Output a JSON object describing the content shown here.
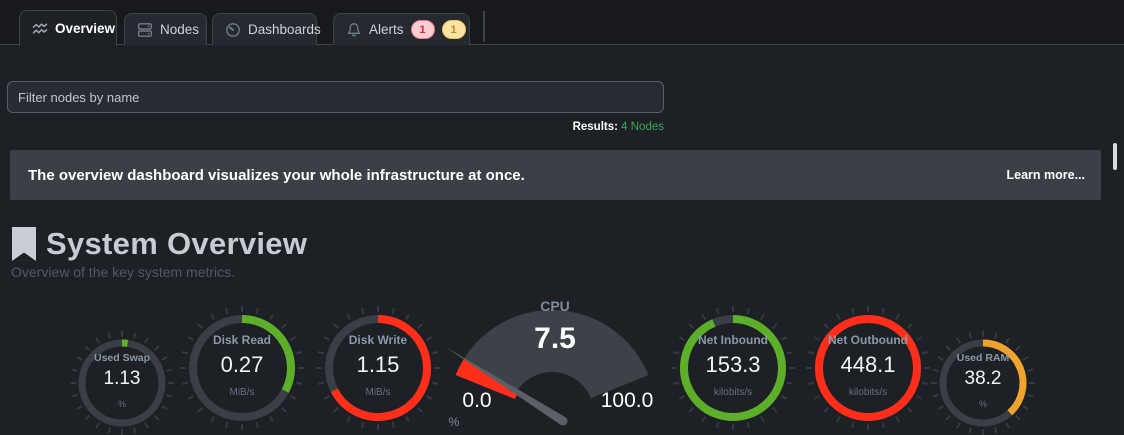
{
  "tabs": [
    {
      "label": "Overview",
      "active": true
    },
    {
      "label": "Nodes",
      "active": false
    },
    {
      "label": "Dashboards",
      "active": false
    },
    {
      "label": "Alerts",
      "active": false,
      "badges": [
        {
          "count": "1",
          "type": "critical"
        },
        {
          "count": "1",
          "type": "warning"
        }
      ]
    }
  ],
  "filter": {
    "placeholder": "Filter nodes by name"
  },
  "results": {
    "label": "Results:",
    "value": "4 Nodes"
  },
  "banner": {
    "text": "The overview dashboard visualizes your whole infrastructure at once.",
    "link": "Learn more..."
  },
  "section": {
    "title": "System Overview",
    "subtitle": "Overview of the key system metrics."
  },
  "colors": {
    "green": "#5daf29",
    "red": "#fc2e1a",
    "orange": "#eea32f",
    "ring_bg": "#3a3f45",
    "fan_bg": "#3d4248",
    "needle": "#5a6066",
    "tick": "#343a41"
  },
  "chart_data": [
    {
      "type": "gauge-ring",
      "name": "Used Swap",
      "value": "1.13",
      "unit": "%",
      "color": "green",
      "arc_deg": 8,
      "size": "small"
    },
    {
      "type": "gauge-ring",
      "name": "Disk Read",
      "value": "0.27",
      "unit": "MiB/s",
      "color": "green",
      "arc_deg": 118,
      "size": "big"
    },
    {
      "type": "gauge-ring",
      "name": "Disk Write",
      "value": "1.15",
      "unit": "MiB/s",
      "color": "red",
      "arc_deg": 243,
      "size": "big"
    },
    {
      "type": "gauge-meter",
      "name": "CPU",
      "value": "7.5",
      "unit": "%",
      "color": "red",
      "min": "0.0",
      "max": "100.0",
      "percent": 7.5
    },
    {
      "type": "gauge-ring",
      "name": "Net Inbound",
      "value": "153.3",
      "unit": "kilobits/s",
      "color": "green",
      "arc_deg": 337,
      "size": "big"
    },
    {
      "type": "gauge-ring",
      "name": "Net Outbound",
      "value": "448.1",
      "unit": "kilobits/s",
      "color": "red",
      "arc_deg": 360,
      "size": "big"
    },
    {
      "type": "gauge-ring",
      "name": "Used RAM",
      "value": "38.2",
      "unit": "%",
      "color": "orange",
      "arc_deg": 138,
      "size": "small"
    }
  ]
}
